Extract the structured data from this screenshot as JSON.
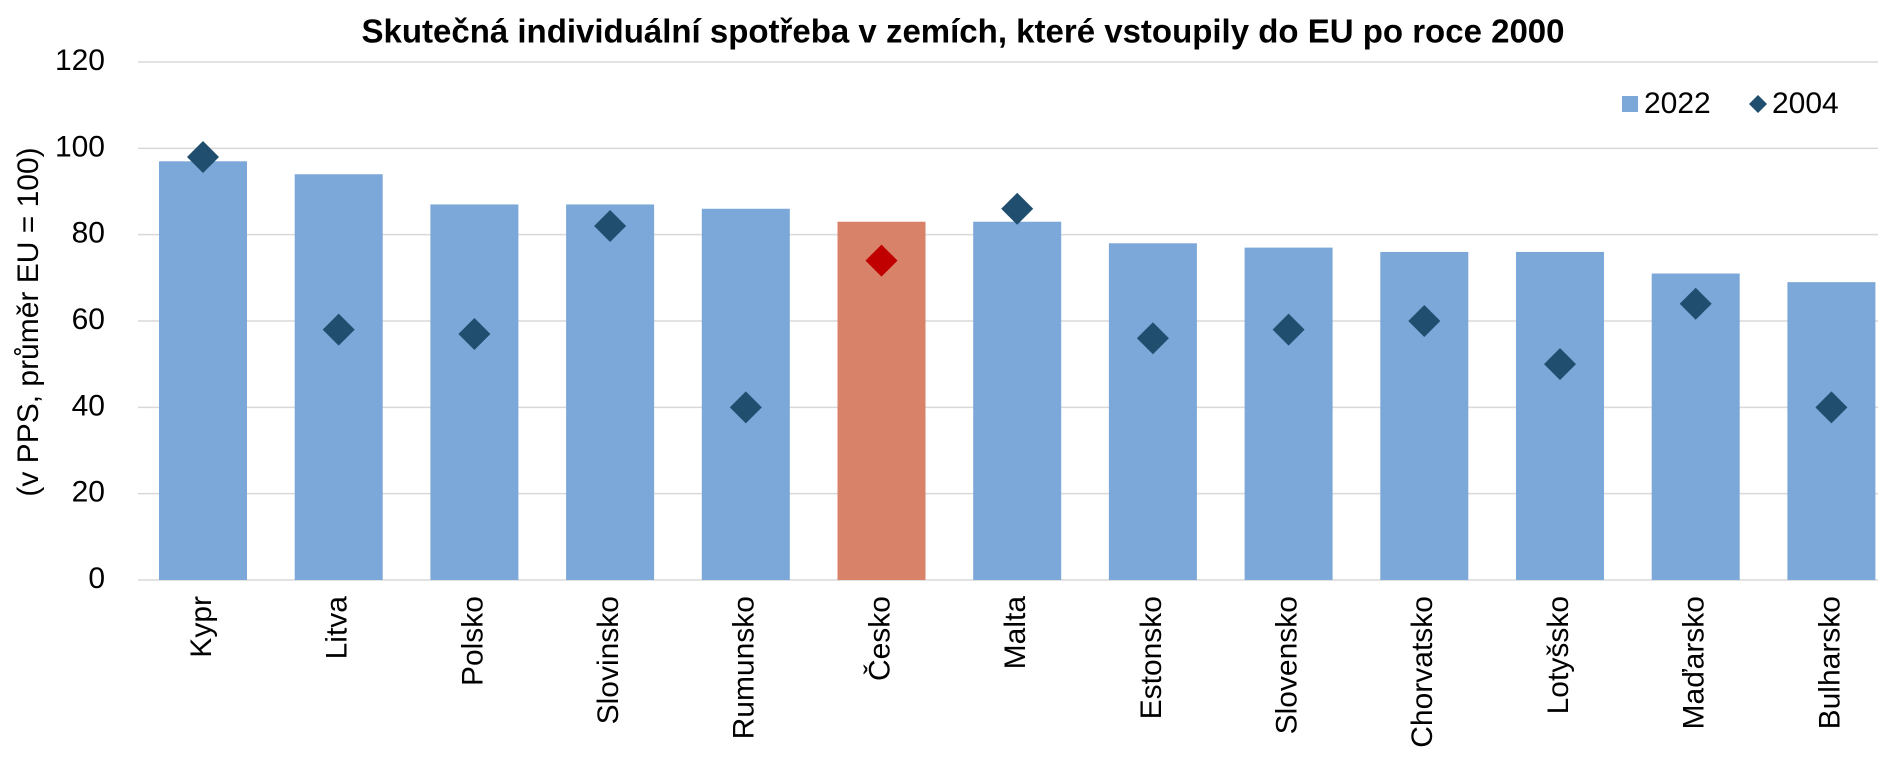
{
  "chart_data": {
    "type": "bar",
    "title": "Skutečná individuální spotřeba v zemích, které vstoupily do EU po roce 2000",
    "y_label": "(v PPS, průměr EU = 100)",
    "categories": [
      "Kypr",
      "Litva",
      "Polsko",
      "Slovinsko",
      "Rumunsko",
      "Česko",
      "Malta",
      "Estonsko",
      "Slovensko",
      "Chorvatsko",
      "Lotyšsko",
      "Maďarsko",
      "Bulharsko"
    ],
    "series": [
      {
        "name": "2022",
        "type": "bar",
        "color": "#7ba7d9",
        "colors": [
          "#7ba7d9",
          "#7ba7d9",
          "#7ba7d9",
          "#7ba7d9",
          "#7ba7d9",
          "#d9826a",
          "#7ba7d9",
          "#7ba7d9",
          "#7ba7d9",
          "#7ba7d9",
          "#7ba7d9",
          "#7ba7d9",
          "#7ba7d9"
        ],
        "values": [
          97,
          94,
          87,
          87,
          86,
          83,
          83,
          78,
          77,
          76,
          76,
          71,
          69
        ]
      },
      {
        "name": "2004",
        "type": "diamond",
        "color": "#1f4e6e",
        "colors": [
          "#1f4e6e",
          "#1f4e6e",
          "#1f4e6e",
          "#1f4e6e",
          "#1f4e6e",
          "#c00000",
          "#1f4e6e",
          "#1f4e6e",
          "#1f4e6e",
          "#1f4e6e",
          "#1f4e6e",
          "#1f4e6e",
          "#1f4e6e"
        ],
        "values": [
          98,
          58,
          57,
          82,
          40,
          74,
          86,
          56,
          58,
          60,
          50,
          64,
          40
        ]
      }
    ],
    "ylim": [
      0,
      120
    ],
    "yticks": [
      0,
      20,
      40,
      60,
      80,
      100,
      120
    ],
    "grid": true,
    "legend": "top-right"
  }
}
